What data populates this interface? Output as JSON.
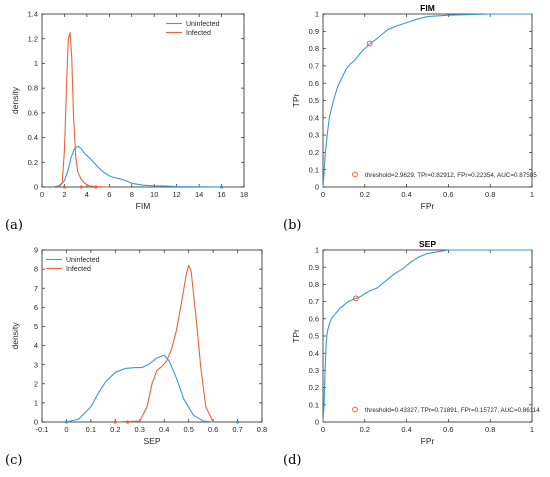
{
  "figure": {
    "panel_labels": [
      "(a)",
      "(b)",
      "(c)",
      "(d)"
    ]
  },
  "colors": {
    "uninfected": "#3a9ad2",
    "infected": "#e8643f",
    "roc": "#3a9ad2",
    "marker": "#e8643f",
    "axis": "#262626"
  },
  "chart_data": [
    {
      "panel": "(a)",
      "type": "line",
      "title": "",
      "xlabel": "FIM",
      "ylabel": "density",
      "xlim": [
        0,
        18
      ],
      "ylim": [
        0,
        1.4
      ],
      "xticks": [
        0,
        2,
        4,
        6,
        8,
        10,
        12,
        14,
        16,
        18
      ],
      "yticks": [
        0,
        0.2,
        0.4,
        0.6,
        0.8,
        1.0,
        1.2,
        1.4
      ],
      "xtick_labels": [
        "0",
        "2",
        "4",
        "6",
        "8",
        "10",
        "12",
        "14",
        "16",
        "18"
      ],
      "ytick_labels": [
        "0",
        "0.2",
        "0.4",
        "0.6",
        "0.8",
        "1",
        "1.2",
        "1.4"
      ],
      "legend_position": "top-right",
      "grid": false,
      "series": [
        {
          "name": "Uninfected",
          "color_key": "uninfected",
          "x": [
            1.0,
            1.5,
            2.0,
            2.3,
            2.6,
            2.9,
            3.2,
            3.5,
            3.8,
            4.2,
            4.6,
            5.0,
            5.5,
            6.0,
            6.5,
            7.0,
            7.5,
            8.0,
            9.0,
            10.0,
            11.0,
            12.0,
            13.0,
            14.0,
            15.0,
            16.0
          ],
          "y": [
            0,
            0.01,
            0.05,
            0.13,
            0.24,
            0.31,
            0.33,
            0.31,
            0.27,
            0.24,
            0.2,
            0.16,
            0.12,
            0.09,
            0.075,
            0.065,
            0.05,
            0.03,
            0.015,
            0.01,
            0.008,
            0.004,
            0.003,
            0.002,
            0.001,
            0
          ]
        },
        {
          "name": "Infected",
          "color_key": "infected",
          "x": [
            1.5,
            1.8,
            2.0,
            2.2,
            2.35,
            2.5,
            2.65,
            2.8,
            3.0,
            3.2,
            3.5,
            3.8,
            4.2,
            4.6,
            5.0,
            6.0
          ],
          "y": [
            0,
            0.03,
            0.3,
            0.85,
            1.2,
            1.25,
            1.05,
            0.6,
            0.25,
            0.12,
            0.06,
            0.03,
            0.01,
            0.005,
            0.003,
            0
          ]
        }
      ],
      "markers": [
        {
          "series": "Uninfected",
          "x": [
            16.0
          ],
          "y": [
            0
          ]
        },
        {
          "series": "Infected",
          "x": [
            2.0,
            3.5,
            4.8
          ],
          "y": [
            0,
            0,
            0
          ]
        }
      ]
    },
    {
      "panel": "(b)",
      "type": "line",
      "title": "FIM",
      "xlabel": "FPr",
      "ylabel": "TPr",
      "xlim": [
        0,
        1
      ],
      "ylim": [
        0,
        1
      ],
      "xticks": [
        0,
        0.2,
        0.4,
        0.6,
        0.8,
        1
      ],
      "yticks": [
        0,
        0.1,
        0.2,
        0.3,
        0.4,
        0.5,
        0.6,
        0.7,
        0.8,
        0.9,
        1
      ],
      "xtick_labels": [
        "0",
        "0.2",
        "0.4",
        "0.6",
        "0.8",
        "1"
      ],
      "ytick_labels": [
        "0",
        "0.1",
        "0.2",
        "0.3",
        "0.4",
        "0.5",
        "0.6",
        "0.7",
        "0.8",
        "0.9",
        "1"
      ],
      "grid": false,
      "series": [
        {
          "name": "",
          "color_key": "roc",
          "x": [
            0,
            0.005,
            0.01,
            0.02,
            0.03,
            0.05,
            0.07,
            0.09,
            0.11,
            0.13,
            0.15,
            0.17,
            0.19,
            0.21,
            0.22354,
            0.25,
            0.28,
            0.31,
            0.35,
            0.4,
            0.45,
            0.5,
            0.6,
            0.7,
            0.8,
            0.9,
            1.0
          ],
          "y": [
            0,
            0.08,
            0.18,
            0.3,
            0.4,
            0.5,
            0.58,
            0.63,
            0.68,
            0.71,
            0.73,
            0.76,
            0.79,
            0.81,
            0.82912,
            0.85,
            0.88,
            0.91,
            0.93,
            0.95,
            0.97,
            0.985,
            0.993,
            0.997,
            1.0,
            1.0,
            1.0
          ]
        }
      ],
      "operating_point": {
        "x": 0.22354,
        "y": 0.82912
      },
      "annotation": "threshold=2.9629, TPr=0.82912, FPr=0.22354, AUC=0.87585"
    },
    {
      "panel": "(c)",
      "type": "line",
      "title": "",
      "xlabel": "SEP",
      "ylabel": "density",
      "xlim": [
        -0.1,
        0.8
      ],
      "ylim": [
        0,
        9
      ],
      "xticks": [
        -0.1,
        0,
        0.1,
        0.2,
        0.3,
        0.4,
        0.5,
        0.6,
        0.7,
        0.8
      ],
      "yticks": [
        0,
        1,
        2,
        3,
        4,
        5,
        6,
        7,
        8,
        9
      ],
      "xtick_labels": [
        "-0.1",
        "0",
        "0.1",
        "0.2",
        "0.3",
        "0.4",
        "0.5",
        "0.6",
        "0.7",
        "0.8"
      ],
      "ytick_labels": [
        "0",
        "1",
        "2",
        "3",
        "4",
        "5",
        "6",
        "7",
        "8",
        "9"
      ],
      "legend_position": "top-left",
      "grid": false,
      "series": [
        {
          "name": "Uninfected",
          "color_key": "uninfected",
          "x": [
            0.0,
            0.05,
            0.1,
            0.13,
            0.16,
            0.2,
            0.24,
            0.28,
            0.31,
            0.34,
            0.37,
            0.4,
            0.42,
            0.45,
            0.48,
            0.52,
            0.56,
            0.6
          ],
          "y": [
            0,
            0.15,
            0.8,
            1.5,
            2.1,
            2.6,
            2.8,
            2.85,
            2.85,
            3.05,
            3.35,
            3.5,
            3.2,
            2.3,
            1.2,
            0.35,
            0.05,
            0
          ]
        },
        {
          "name": "Infected",
          "color_key": "infected",
          "x": [
            0.2,
            0.3,
            0.33,
            0.35,
            0.37,
            0.39,
            0.41,
            0.43,
            0.45,
            0.47,
            0.49,
            0.5,
            0.51,
            0.53,
            0.55,
            0.57,
            0.6
          ],
          "y": [
            0,
            0.05,
            0.8,
            2.0,
            2.7,
            2.9,
            3.2,
            3.8,
            4.8,
            6.2,
            7.7,
            8.2,
            7.9,
            5.5,
            2.8,
            0.8,
            0
          ]
        }
      ],
      "markers": [
        {
          "series": "Uninfected",
          "x": [
            0.0,
            0.7
          ],
          "y": [
            0,
            0
          ]
        },
        {
          "series": "Infected",
          "x": [
            0.2,
            0.25
          ],
          "y": [
            0,
            0
          ]
        }
      ]
    },
    {
      "panel": "(d)",
      "type": "line",
      "title": "SEP",
      "xlabel": "FPr",
      "ylabel": "TPr",
      "xlim": [
        0,
        1
      ],
      "ylim": [
        0,
        1
      ],
      "xticks": [
        0,
        0.2,
        0.4,
        0.6,
        0.8,
        1
      ],
      "yticks": [
        0,
        0.1,
        0.2,
        0.3,
        0.4,
        0.5,
        0.6,
        0.7,
        0.8,
        0.9,
        1
      ],
      "xtick_labels": [
        "0",
        "0.2",
        "0.4",
        "0.6",
        "0.8",
        "1"
      ],
      "ytick_labels": [
        "0",
        "0.1",
        "0.2",
        "0.3",
        "0.4",
        "0.5",
        "0.6",
        "0.7",
        "0.8",
        "0.9",
        "1"
      ],
      "grid": false,
      "series": [
        {
          "name": "",
          "color_key": "roc",
          "x": [
            0,
            0.005,
            0.01,
            0.015,
            0.02,
            0.03,
            0.04,
            0.06,
            0.08,
            0.1,
            0.12,
            0.14,
            0.15727,
            0.18,
            0.22,
            0.26,
            0.3,
            0.34,
            0.38,
            0.42,
            0.46,
            0.5,
            0.55,
            0.6,
            0.7,
            0.8,
            1.0
          ],
          "y": [
            0,
            0.1,
            0.3,
            0.45,
            0.52,
            0.57,
            0.6,
            0.63,
            0.66,
            0.68,
            0.7,
            0.71,
            0.71891,
            0.73,
            0.76,
            0.78,
            0.82,
            0.86,
            0.89,
            0.93,
            0.96,
            0.98,
            0.99,
            1.0,
            1.0,
            1.0,
            1.0
          ]
        }
      ],
      "operating_point": {
        "x": 0.15727,
        "y": 0.71891
      },
      "annotation": "threshold=0.43327, TPr=0.71891, FPr=0.15727, AUC=0.86114"
    }
  ]
}
